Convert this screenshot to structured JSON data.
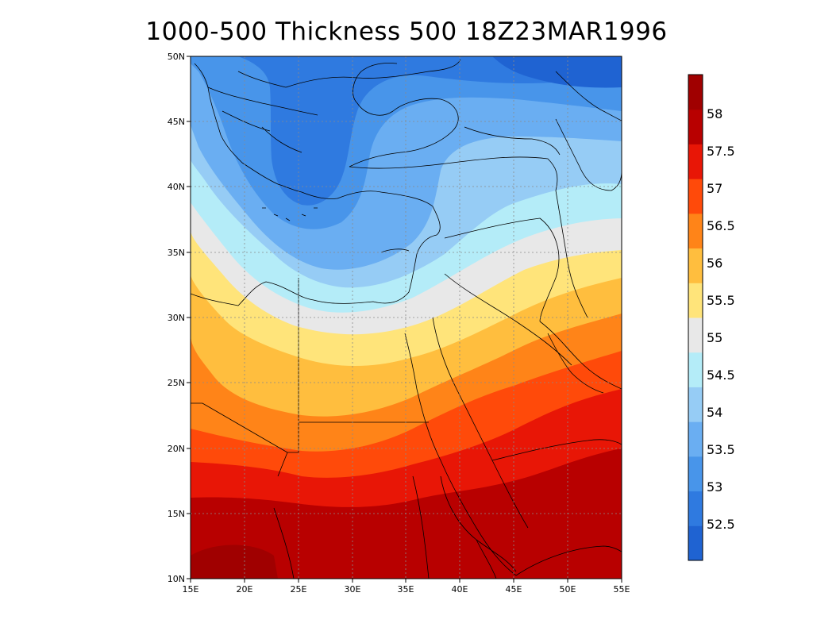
{
  "title": "1000-500 Thickness 500 18Z23MAR1996",
  "map": {
    "lon_range": [
      15,
      55
    ],
    "lat_range": [
      10,
      50
    ],
    "lon_ticks": [
      "15E",
      "20E",
      "25E",
      "30E",
      "35E",
      "40E",
      "45E",
      "50E",
      "55E"
    ],
    "lat_ticks": [
      "10N",
      "15N",
      "20N",
      "25N",
      "30N",
      "35N",
      "40N",
      "45N",
      "50N"
    ],
    "grid": true
  },
  "colorbar": {
    "labels": [
      "52.5",
      "53",
      "53.5",
      "54",
      "54.5",
      "55",
      "55.5",
      "56",
      "56.5",
      "57",
      "57.5",
      "58"
    ],
    "colors": [
      "#1f63d2",
      "#2f7ae0",
      "#4895ea",
      "#6aaef2",
      "#96ccf5",
      "#b4ecf8",
      "#e8e8e8",
      "#ffe47a",
      "#ffbe3e",
      "#ff8418",
      "#ff4a0a",
      "#e81606",
      "#b80000",
      "#a00000"
    ]
  },
  "contour_colors": {
    "c52_5": "#1f63d2",
    "c53": "#2f7ae0",
    "c53_5": "#4895ea",
    "c54": "#6aaef2",
    "c54_5": "#96ccf5",
    "c55": "#b4ecf8",
    "c55_5": "#e8e8e8",
    "c56": "#ffe47a",
    "c56_5": "#ffbe3e",
    "c57": "#ff8418",
    "c57_5": "#ff4a0a",
    "c58": "#e81606",
    "c58_5": "#b80000",
    "c59": "#a00000"
  }
}
